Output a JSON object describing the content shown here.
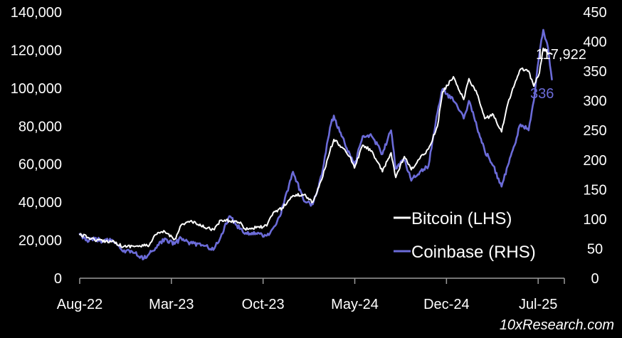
{
  "chart_data": {
    "type": "line",
    "title": "",
    "xlabel": "",
    "ylabel_left": "",
    "ylabel_right": "",
    "x_ticks": [
      "Aug-22",
      "Mar-23",
      "Oct-23",
      "May-24",
      "Dec-24",
      "Jul-25"
    ],
    "y_left": {
      "min": 0,
      "max": 140000,
      "ticks": [
        "0",
        "20,000",
        "40,000",
        "60,000",
        "80,000",
        "100,000",
        "120,000",
        "140,000"
      ]
    },
    "y_right": {
      "min": 0,
      "max": 450,
      "ticks": [
        "0",
        "50",
        "100",
        "150",
        "200",
        "250",
        "300",
        "350",
        "400",
        "450"
      ]
    },
    "grid": false,
    "legend_position": "bottom-right",
    "colors": {
      "background": "#000000",
      "bitcoin": "#ffffff",
      "coinbase": "#6b6bd8"
    },
    "series": [
      {
        "name": "Bitcoin (LHS)",
        "axis": "left",
        "color": "#ffffff",
        "end_label": "117,922",
        "points": [
          [
            "2022-08-01",
            23000
          ],
          [
            "2022-08-20",
            21500
          ],
          [
            "2022-09-10",
            20000
          ],
          [
            "2022-10-01",
            19500
          ],
          [
            "2022-10-20",
            19300
          ],
          [
            "2022-11-10",
            16500
          ],
          [
            "2022-12-01",
            17000
          ],
          [
            "2022-12-20",
            16800
          ],
          [
            "2023-01-10",
            17500
          ],
          [
            "2023-01-25",
            23000
          ],
          [
            "2023-02-15",
            24500
          ],
          [
            "2023-03-10",
            20500
          ],
          [
            "2023-03-25",
            28000
          ],
          [
            "2023-04-15",
            30000
          ],
          [
            "2023-05-10",
            27500
          ],
          [
            "2023-06-10",
            25500
          ],
          [
            "2023-06-25",
            30500
          ],
          [
            "2023-07-15",
            30200
          ],
          [
            "2023-08-10",
            29500
          ],
          [
            "2023-08-20",
            26000
          ],
          [
            "2023-09-15",
            26500
          ],
          [
            "2023-10-10",
            27500
          ],
          [
            "2023-10-25",
            34500
          ],
          [
            "2023-11-15",
            37000
          ],
          [
            "2023-12-10",
            43500
          ],
          [
            "2024-01-05",
            44000
          ],
          [
            "2024-01-25",
            40000
          ],
          [
            "2024-02-15",
            52000
          ],
          [
            "2024-03-05",
            67000
          ],
          [
            "2024-03-14",
            73000
          ],
          [
            "2024-04-01",
            69000
          ],
          [
            "2024-04-20",
            64000
          ],
          [
            "2024-05-01",
            58000
          ],
          [
            "2024-05-20",
            70000
          ],
          [
            "2024-06-10",
            67000
          ],
          [
            "2024-07-05",
            56000
          ],
          [
            "2024-07-25",
            66000
          ],
          [
            "2024-08-05",
            53000
          ],
          [
            "2024-08-25",
            64000
          ],
          [
            "2024-09-10",
            57000
          ],
          [
            "2024-09-30",
            63000
          ],
          [
            "2024-10-20",
            68000
          ],
          [
            "2024-11-10",
            80000
          ],
          [
            "2024-11-22",
            98000
          ],
          [
            "2024-12-17",
            106000
          ],
          [
            "2025-01-10",
            94000
          ],
          [
            "2025-01-22",
            105000
          ],
          [
            "2025-02-10",
            97000
          ],
          [
            "2025-02-28",
            84000
          ],
          [
            "2025-03-20",
            86000
          ],
          [
            "2025-04-08",
            77000
          ],
          [
            "2025-04-25",
            94000
          ],
          [
            "2025-05-22",
            110000
          ],
          [
            "2025-06-10",
            109000
          ],
          [
            "2025-06-22",
            101000
          ],
          [
            "2025-07-05",
            108000
          ],
          [
            "2025-07-14",
            121000
          ],
          [
            "2025-07-25",
            118000
          ],
          [
            "2025-08-03",
            117922
          ]
        ]
      },
      {
        "name": "Coinbase (RHS)",
        "axis": "right",
        "color": "#6b6bd8",
        "end_label": "336",
        "points": [
          [
            "2022-08-01",
            75
          ],
          [
            "2022-08-15",
            64
          ],
          [
            "2022-09-05",
            66
          ],
          [
            "2022-09-25",
            63
          ],
          [
            "2022-10-15",
            65
          ],
          [
            "2022-11-10",
            45
          ],
          [
            "2022-12-01",
            45
          ],
          [
            "2022-12-28",
            33
          ],
          [
            "2023-01-15",
            45
          ],
          [
            "2023-02-05",
            62
          ],
          [
            "2023-02-20",
            65
          ],
          [
            "2023-03-10",
            58
          ],
          [
            "2023-03-25",
            68
          ],
          [
            "2023-04-15",
            60
          ],
          [
            "2023-05-10",
            55
          ],
          [
            "2023-06-10",
            50
          ],
          [
            "2023-06-25",
            70
          ],
          [
            "2023-07-15",
            105
          ],
          [
            "2023-08-01",
            90
          ],
          [
            "2023-08-20",
            75
          ],
          [
            "2023-09-15",
            76
          ],
          [
            "2023-10-10",
            72
          ],
          [
            "2023-10-25",
            85
          ],
          [
            "2023-11-10",
            105
          ],
          [
            "2023-12-10",
            180
          ],
          [
            "2024-01-05",
            130
          ],
          [
            "2024-01-25",
            125
          ],
          [
            "2024-02-15",
            175
          ],
          [
            "2024-03-05",
            255
          ],
          [
            "2024-03-14",
            275
          ],
          [
            "2024-04-01",
            240
          ],
          [
            "2024-04-20",
            210
          ],
          [
            "2024-05-01",
            190
          ],
          [
            "2024-05-20",
            240
          ],
          [
            "2024-06-10",
            240
          ],
          [
            "2024-07-05",
            210
          ],
          [
            "2024-07-25",
            250
          ],
          [
            "2024-08-05",
            185
          ],
          [
            "2024-08-25",
            200
          ],
          [
            "2024-09-10",
            165
          ],
          [
            "2024-09-30",
            180
          ],
          [
            "2024-10-20",
            190
          ],
          [
            "2024-11-10",
            280
          ],
          [
            "2024-11-22",
            320
          ],
          [
            "2024-12-17",
            300
          ],
          [
            "2025-01-10",
            270
          ],
          [
            "2025-01-22",
            300
          ],
          [
            "2025-02-10",
            255
          ],
          [
            "2025-02-28",
            215
          ],
          [
            "2025-03-20",
            190
          ],
          [
            "2025-04-08",
            155
          ],
          [
            "2025-04-25",
            195
          ],
          [
            "2025-05-22",
            260
          ],
          [
            "2025-06-10",
            250
          ],
          [
            "2025-06-22",
            300
          ],
          [
            "2025-07-05",
            380
          ],
          [
            "2025-07-14",
            420
          ],
          [
            "2025-07-25",
            390
          ],
          [
            "2025-08-03",
            336
          ]
        ]
      }
    ]
  },
  "source": "10xResearch.com"
}
